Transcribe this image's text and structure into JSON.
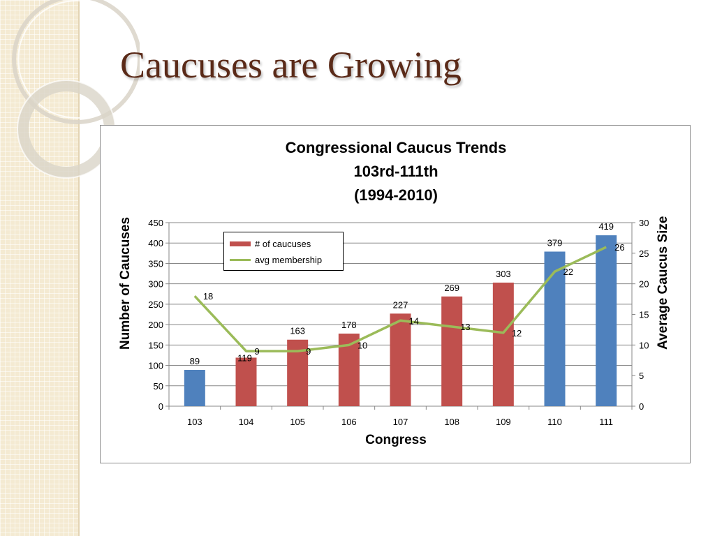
{
  "slide": {
    "title": "Caucuses are Growing"
  },
  "chart_data": {
    "type": "bar",
    "title_lines": [
      "Congressional Caucus Trends",
      "103rd-111th",
      "(1994-2010)"
    ],
    "xlabel": "Congress",
    "ylabel": "Number of Caucuses",
    "y2label": "Average Caucus Size",
    "categories": [
      "103",
      "104",
      "105",
      "106",
      "107",
      "108",
      "109",
      "110",
      "111"
    ],
    "ylim": [
      0,
      450
    ],
    "yticks": [
      0,
      50,
      100,
      150,
      200,
      250,
      300,
      350,
      400,
      450
    ],
    "y2lim": [
      0,
      30
    ],
    "y2ticks": [
      0,
      5,
      10,
      15,
      20,
      25,
      30
    ],
    "grid": true,
    "legend_position": "top-left",
    "series": [
      {
        "name": "# of caucuses",
        "kind": "bar",
        "axis": "left",
        "values": [
          89,
          119,
          163,
          178,
          227,
          269,
          303,
          379,
          419
        ],
        "colors": [
          "#4f81bd",
          "#c0504d",
          "#c0504d",
          "#c0504d",
          "#c0504d",
          "#c0504d",
          "#c0504d",
          "#4f81bd",
          "#4f81bd"
        ]
      },
      {
        "name": "avg membership",
        "kind": "line",
        "axis": "right",
        "values": [
          18,
          9,
          9,
          10,
          14,
          13,
          12,
          22,
          26
        ],
        "color": "#9bbb59"
      }
    ]
  }
}
